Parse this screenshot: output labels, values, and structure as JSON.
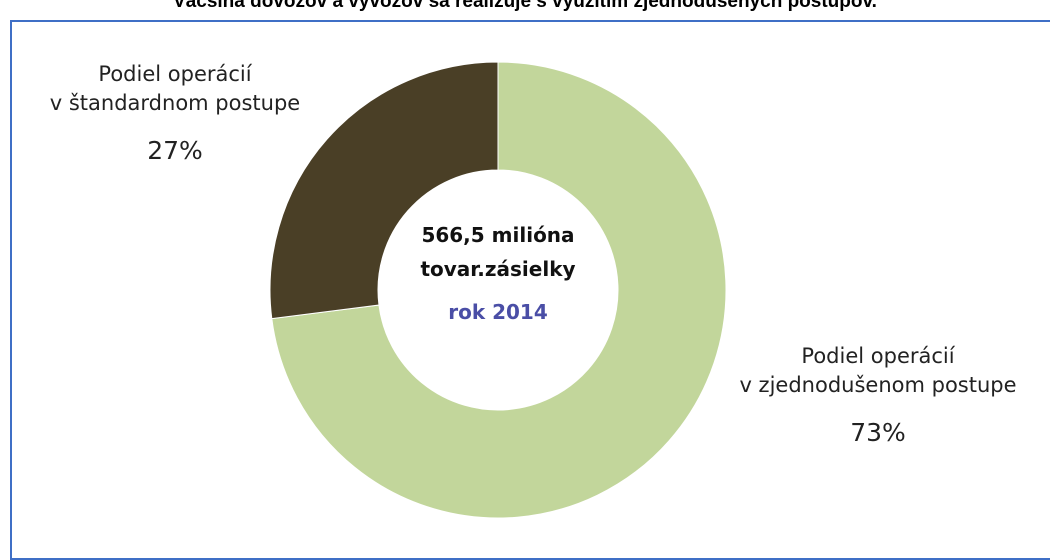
{
  "title": "Väčšina dovozov a vývozov sa realizuje s využitím zjednodušených postupov.",
  "center": {
    "line1": "566,5 milióna",
    "line2": "tovar.zásielky",
    "line3": "rok 2014",
    "line3_color": "#4a4ea6"
  },
  "chart_data": {
    "type": "pie",
    "variant": "donut",
    "title": "Väčšina dovozov a vývozov sa realizuje s využitím zjednodušených postupov.",
    "slices": [
      {
        "label": "Podiel operácií v štandardnom postupe",
        "label_line1": "Podiel operácií",
        "label_line2": "v štandardnom postupe",
        "value": 27,
        "value_label": "27%",
        "color": "#4a3f26"
      },
      {
        "label": "Podiel operácií v zjednodušenom postupe",
        "label_line1": "Podiel operácií",
        "label_line2": "v zjednodušenom postupe",
        "value": 73,
        "value_label": "73%",
        "color": "#c2d69b"
      }
    ],
    "start_angle": "12 o'clock",
    "direction": "clockwise, simplified slice first"
  },
  "colors": {
    "frame_border": "#3f6fc6",
    "background": "#ffffff"
  }
}
